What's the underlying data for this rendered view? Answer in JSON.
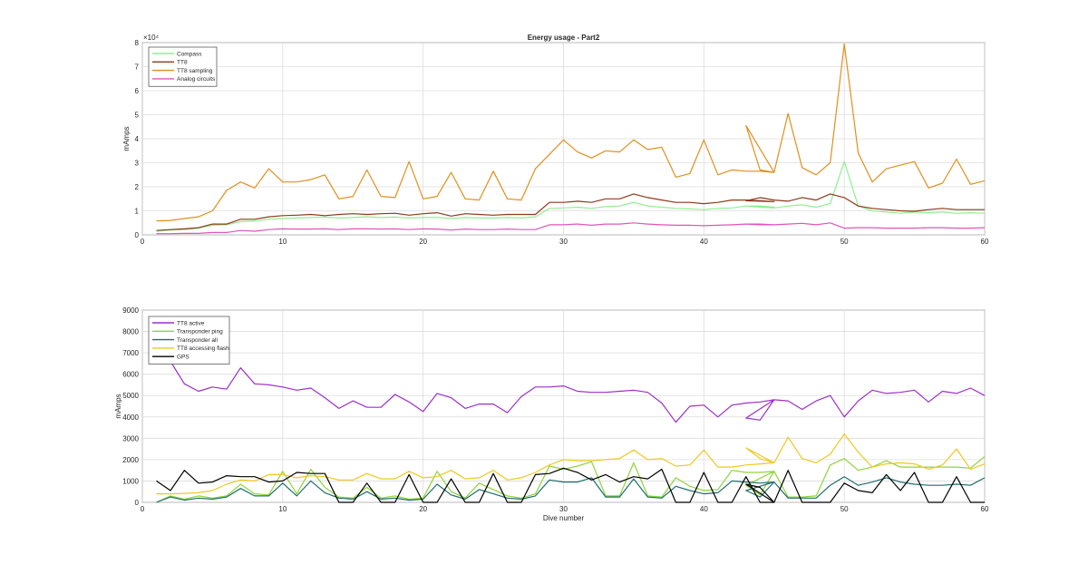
{
  "chart_data": [
    {
      "type": "line",
      "title": "Energy usage - Part2",
      "xlabel": "",
      "ylabel": "mAmps",
      "exponent_label": "×10⁴",
      "xlim": [
        0,
        60
      ],
      "ylim": [
        0,
        8
      ],
      "xticks": [
        "0",
        "10",
        "20",
        "30",
        "40",
        "50",
        "60"
      ],
      "yticks": [
        "0",
        "1",
        "2",
        "3",
        "4",
        "5",
        "6",
        "7",
        "8"
      ],
      "grid": true,
      "legend_position": "top-left",
      "x": [
        1,
        2,
        3,
        4,
        5,
        6,
        7,
        8,
        9,
        10,
        11,
        12,
        13,
        14,
        15,
        16,
        17,
        18,
        19,
        20,
        21,
        22,
        23,
        24,
        25,
        26,
        27,
        28,
        29,
        30,
        31,
        32,
        33,
        34,
        35,
        36,
        37,
        38,
        39,
        40,
        41,
        42,
        43,
        44,
        45,
        43,
        44,
        45,
        46,
        47,
        48,
        49,
        50,
        51,
        52,
        53,
        54,
        55,
        56,
        57,
        58,
        59,
        60
      ],
      "series": [
        {
          "name": "Compass",
          "color": "#90ee90",
          "values": [
            0.15,
            0.2,
            0.22,
            0.28,
            0.4,
            0.42,
            0.55,
            0.58,
            0.65,
            0.68,
            0.7,
            0.72,
            0.74,
            0.7,
            0.72,
            0.75,
            0.72,
            0.74,
            0.7,
            0.72,
            0.73,
            0.68,
            0.72,
            0.7,
            0.7,
            0.72,
            0.7,
            0.75,
            1.1,
            1.12,
            1.15,
            1.1,
            1.18,
            1.2,
            1.35,
            1.2,
            1.15,
            1.1,
            1.08,
            1.05,
            1.1,
            1.12,
            1.2,
            1.2,
            1.15,
            1.2,
            1.15,
            1.12,
            1.2,
            1.25,
            1.15,
            1.3,
            3.05,
            1.2,
            1.0,
            0.95,
            0.9,
            0.95,
            0.92,
            0.95,
            0.9,
            0.92,
            0.9
          ]
        },
        {
          "name": "TT8",
          "color": "#8b3a1a",
          "values": [
            0.18,
            0.22,
            0.25,
            0.3,
            0.45,
            0.45,
            0.65,
            0.65,
            0.75,
            0.8,
            0.82,
            0.85,
            0.8,
            0.85,
            0.88,
            0.85,
            0.88,
            0.9,
            0.82,
            0.88,
            0.92,
            0.78,
            0.88,
            0.85,
            0.82,
            0.85,
            0.85,
            0.85,
            1.35,
            1.35,
            1.4,
            1.35,
            1.5,
            1.5,
            1.7,
            1.55,
            1.45,
            1.35,
            1.35,
            1.3,
            1.35,
            1.45,
            1.45,
            1.42,
            1.38,
            1.42,
            1.55,
            1.45,
            1.4,
            1.55,
            1.45,
            1.7,
            1.55,
            1.2,
            1.1,
            1.05,
            1.0,
            0.98,
            1.05,
            1.1,
            1.05,
            1.05,
            1.05
          ]
        },
        {
          "name": "TT8 sampling",
          "color": "#e0901c",
          "values": [
            0.58,
            0.6,
            0.68,
            0.75,
            1.0,
            1.85,
            2.2,
            1.95,
            2.75,
            2.2,
            2.2,
            2.3,
            2.5,
            1.5,
            1.6,
            2.7,
            1.6,
            1.55,
            3.05,
            1.5,
            1.6,
            2.6,
            1.5,
            1.45,
            2.65,
            1.5,
            1.45,
            2.75,
            3.35,
            3.95,
            3.45,
            3.2,
            3.5,
            3.45,
            3.95,
            3.55,
            3.65,
            2.4,
            2.55,
            3.95,
            2.5,
            2.7,
            2.65,
            2.65,
            2.6,
            4.55,
            2.7,
            2.6,
            5.05,
            2.8,
            2.5,
            3.0,
            7.95,
            3.4,
            2.2,
            2.75,
            2.9,
            3.05,
            1.95,
            2.15,
            3.15,
            2.1,
            2.25
          ]
        },
        {
          "name": "Analog circuits",
          "color": "#e055b8",
          "values": [
            0.05,
            0.05,
            0.06,
            0.06,
            0.1,
            0.1,
            0.18,
            0.15,
            0.22,
            0.25,
            0.24,
            0.24,
            0.25,
            0.22,
            0.25,
            0.25,
            0.24,
            0.25,
            0.22,
            0.25,
            0.24,
            0.2,
            0.24,
            0.22,
            0.22,
            0.24,
            0.22,
            0.22,
            0.42,
            0.42,
            0.45,
            0.4,
            0.45,
            0.45,
            0.5,
            0.45,
            0.42,
            0.4,
            0.4,
            0.38,
            0.4,
            0.42,
            0.45,
            0.42,
            0.42,
            0.45,
            0.45,
            0.42,
            0.45,
            0.48,
            0.42,
            0.5,
            0.28,
            0.3,
            0.3,
            0.28,
            0.28,
            0.28,
            0.3,
            0.3,
            0.28,
            0.28,
            0.3
          ]
        }
      ]
    },
    {
      "type": "line",
      "title": "",
      "xlabel": "Dive number",
      "ylabel": "mAmps",
      "xlim": [
        0,
        60
      ],
      "ylim": [
        0,
        9000
      ],
      "xticks": [
        "0",
        "10",
        "20",
        "30",
        "40",
        "50",
        "60"
      ],
      "yticks": [
        "0",
        "1000",
        "2000",
        "3000",
        "4000",
        "5000",
        "6000",
        "7000",
        "8000",
        "9000"
      ],
      "grid": true,
      "legend_position": "top-left",
      "x": [
        1,
        2,
        3,
        4,
        5,
        6,
        7,
        8,
        9,
        10,
        11,
        12,
        13,
        14,
        15,
        16,
        17,
        18,
        19,
        20,
        21,
        22,
        23,
        24,
        25,
        26,
        27,
        28,
        29,
        30,
        31,
        32,
        33,
        34,
        35,
        36,
        37,
        38,
        39,
        40,
        41,
        42,
        43,
        44,
        45,
        43,
        44,
        45,
        46,
        47,
        48,
        49,
        50,
        51,
        52,
        53,
        54,
        55,
        56,
        57,
        58,
        59,
        60
      ],
      "series": [
        {
          "name": "TT8 active",
          "color": "#9b30c8",
          "values": [
            7000,
            6600,
            5550,
            5200,
            5400,
            5300,
            6300,
            5550,
            5500,
            5400,
            5250,
            5350,
            4900,
            4400,
            4750,
            4450,
            4450,
            5050,
            4700,
            4250,
            5100,
            4900,
            4400,
            4600,
            4600,
            4200,
            4950,
            5400,
            5400,
            5450,
            5200,
            5150,
            5150,
            5200,
            5250,
            5150,
            4650,
            3750,
            4500,
            4550,
            4000,
            4550,
            4650,
            4700,
            4800,
            3950,
            3850,
            4800,
            4750,
            4350,
            4750,
            5000,
            4000,
            4750,
            5250,
            5100,
            5150,
            5250,
            4700,
            5200,
            5100,
            5350,
            5000
          ]
        },
        {
          "name": "Transponder ping",
          "color": "#8fd43a",
          "values": [
            0,
            300,
            150,
            300,
            200,
            300,
            850,
            400,
            350,
            1450,
            400,
            1550,
            700,
            250,
            200,
            700,
            200,
            300,
            150,
            200,
            1450,
            500,
            200,
            900,
            600,
            300,
            200,
            400,
            1700,
            1550,
            1700,
            1900,
            300,
            300,
            1850,
            300,
            250,
            1150,
            750,
            550,
            600,
            1500,
            1400,
            1400,
            1450,
            800,
            350,
            1450,
            250,
            250,
            300,
            1750,
            2050,
            1500,
            1650,
            1950,
            1650,
            1650,
            1650,
            1650,
            1650,
            1600,
            2150
          ]
        },
        {
          "name": "Transponder all",
          "color": "#1f6e6e",
          "values": [
            0,
            250,
            100,
            200,
            150,
            250,
            650,
            300,
            300,
            900,
            300,
            1000,
            450,
            200,
            150,
            500,
            150,
            200,
            100,
            150,
            850,
            350,
            150,
            600,
            400,
            200,
            150,
            300,
            1050,
            950,
            950,
            1150,
            250,
            250,
            1100,
            250,
            200,
            750,
            550,
            400,
            450,
            1000,
            950,
            900,
            950,
            550,
            250,
            950,
            200,
            200,
            200,
            800,
            1200,
            800,
            950,
            1150,
            950,
            850,
            800,
            800,
            850,
            800,
            1150
          ]
        },
        {
          "name": "TT8 accessing flash",
          "color": "#f0c81e",
          "values": [
            400,
            400,
            420,
            450,
            550,
            850,
            1050,
            1000,
            1300,
            1300,
            1150,
            1250,
            1200,
            1050,
            1050,
            1350,
            1100,
            1100,
            1450,
            1150,
            1200,
            1500,
            1100,
            1150,
            1500,
            1050,
            1150,
            1400,
            1750,
            2000,
            1950,
            1950,
            2000,
            2050,
            2450,
            2000,
            2050,
            1700,
            1750,
            2450,
            1650,
            1650,
            1750,
            1800,
            1850,
            2550,
            2050,
            1850,
            3050,
            2050,
            1850,
            2250,
            3200,
            2350,
            1650,
            1800,
            1850,
            1800,
            1550,
            1750,
            2500,
            1550,
            1800
          ]
        },
        {
          "name": "GPS",
          "color": "#000000",
          "values": [
            1000,
            550,
            1500,
            900,
            950,
            1250,
            1200,
            1200,
            950,
            1000,
            1400,
            1350,
            1350,
            0,
            0,
            900,
            0,
            0,
            1300,
            0,
            0,
            1100,
            0,
            0,
            1350,
            0,
            0,
            1300,
            1350,
            1600,
            1400,
            1050,
            1300,
            950,
            1200,
            1100,
            1550,
            0,
            0,
            1400,
            0,
            0,
            1200,
            0,
            0,
            850,
            700,
            0,
            1500,
            0,
            0,
            0,
            900,
            550,
            450,
            1300,
            550,
            1400,
            0,
            0,
            1200,
            0,
            0
          ]
        }
      ]
    }
  ]
}
